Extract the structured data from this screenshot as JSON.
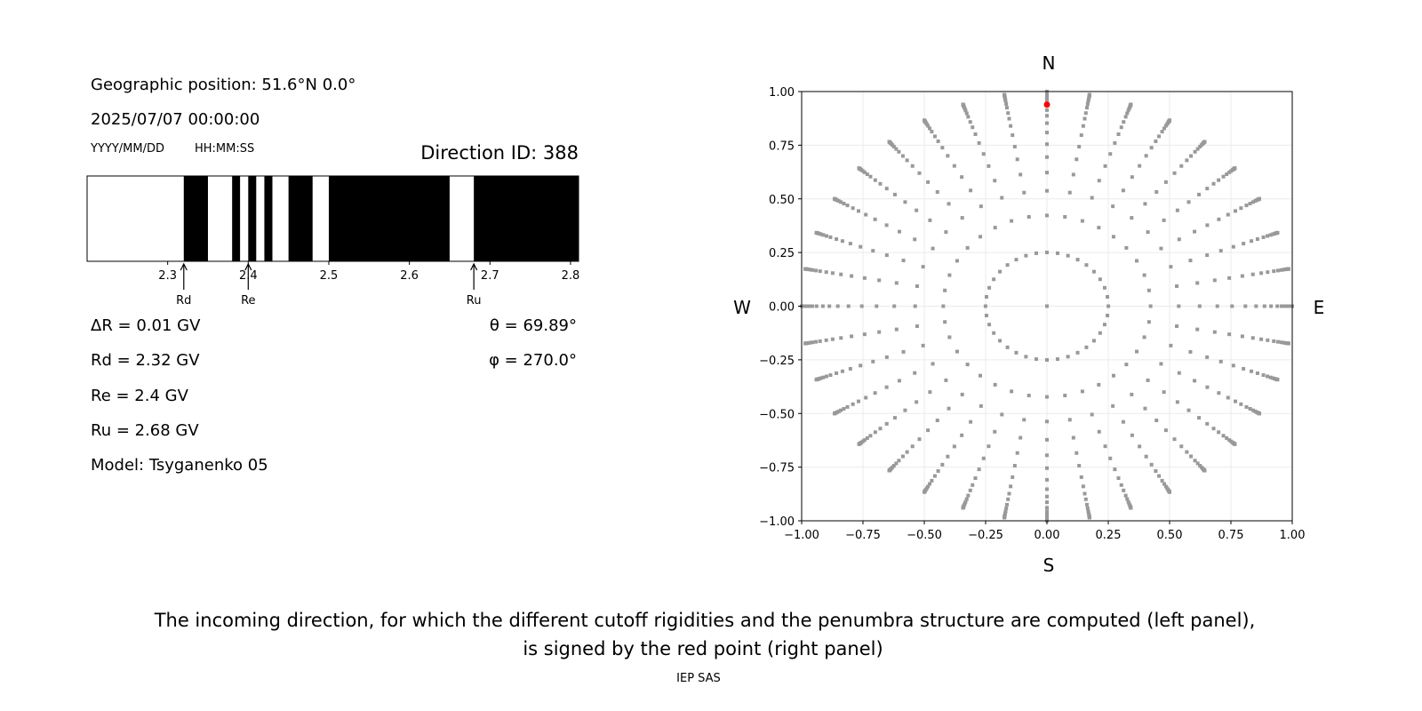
{
  "left_panel": {
    "geo_position": "Geographic position: 51.6°N 0.0°",
    "datetime": "2025/07/07 00:00:00",
    "date_format": "YYYY/MM/DD",
    "time_format": "HH:MM:SS",
    "direction_id": "Direction ID: 388",
    "delta_r": "ΔR = 0.01 GV",
    "rd": "Rd = 2.32 GV",
    "re": "Re = 2.4 GV",
    "ru": "Ru = 2.68 GV",
    "model": "Model: Tsyganenko 05",
    "theta": "θ = 69.89°",
    "phi": "φ = 270.0°"
  },
  "caption": {
    "line1": "The incoming direction, for which the different cutoff rigidities and the penumbra structure are computed (left panel),",
    "line2": "is signed by the red point (right panel)"
  },
  "footer": "IEP SAS",
  "chart_data": [
    {
      "type": "penumbra-bar",
      "xlim": [
        2.2,
        2.81
      ],
      "xticks": [
        "2.3",
        "2.4",
        "2.5",
        "2.6",
        "2.7",
        "2.8"
      ],
      "colors": {
        "allowed": "#ffffff",
        "forbidden": "#000000"
      },
      "bands": [
        {
          "from": 2.2,
          "to": 2.32,
          "state": "allowed"
        },
        {
          "from": 2.32,
          "to": 2.35,
          "state": "forbidden"
        },
        {
          "from": 2.35,
          "to": 2.38,
          "state": "allowed"
        },
        {
          "from": 2.38,
          "to": 2.39,
          "state": "forbidden"
        },
        {
          "from": 2.39,
          "to": 2.4,
          "state": "allowed"
        },
        {
          "from": 2.4,
          "to": 2.41,
          "state": "forbidden"
        },
        {
          "from": 2.41,
          "to": 2.42,
          "state": "allowed"
        },
        {
          "from": 2.42,
          "to": 2.43,
          "state": "forbidden"
        },
        {
          "from": 2.43,
          "to": 2.45,
          "state": "allowed"
        },
        {
          "from": 2.45,
          "to": 2.48,
          "state": "forbidden"
        },
        {
          "from": 2.48,
          "to": 2.5,
          "state": "allowed"
        },
        {
          "from": 2.5,
          "to": 2.65,
          "state": "forbidden"
        },
        {
          "from": 2.65,
          "to": 2.68,
          "state": "allowed"
        },
        {
          "from": 2.68,
          "to": 2.81,
          "state": "forbidden"
        }
      ],
      "markers": [
        {
          "label": "Rd",
          "value": 2.32
        },
        {
          "label": "Re",
          "value": 2.4
        },
        {
          "label": "Ru",
          "value": 2.68
        }
      ]
    },
    {
      "type": "scatter",
      "xlim": [
        -1,
        1
      ],
      "ylim": [
        -1,
        1
      ],
      "xticks": [
        "−1.00",
        "−0.75",
        "−0.50",
        "−0.25",
        "0.00",
        "0.25",
        "0.50",
        "0.75",
        "1.00"
      ],
      "yticks": [
        "−1.00",
        "−0.75",
        "−0.50",
        "−0.25",
        "0.00",
        "0.25",
        "0.50",
        "0.75",
        "1.00"
      ],
      "grid": true,
      "compass": {
        "north": "N",
        "south": "S",
        "west": "W",
        "east": "E"
      },
      "grid_points": {
        "color": "#999999",
        "azimuth_step_deg": 10,
        "zenith_deg": [
          0,
          14.5,
          25,
          32.5,
          38.5,
          44,
          49,
          54,
          58.5,
          62.5,
          66,
          69.9,
          73,
          76,
          78.5,
          81,
          83,
          85,
          86.5,
          88,
          89,
          90
        ]
      },
      "selected_point": {
        "x": 0.0,
        "y": 0.939,
        "color": "#ff0000"
      }
    }
  ]
}
